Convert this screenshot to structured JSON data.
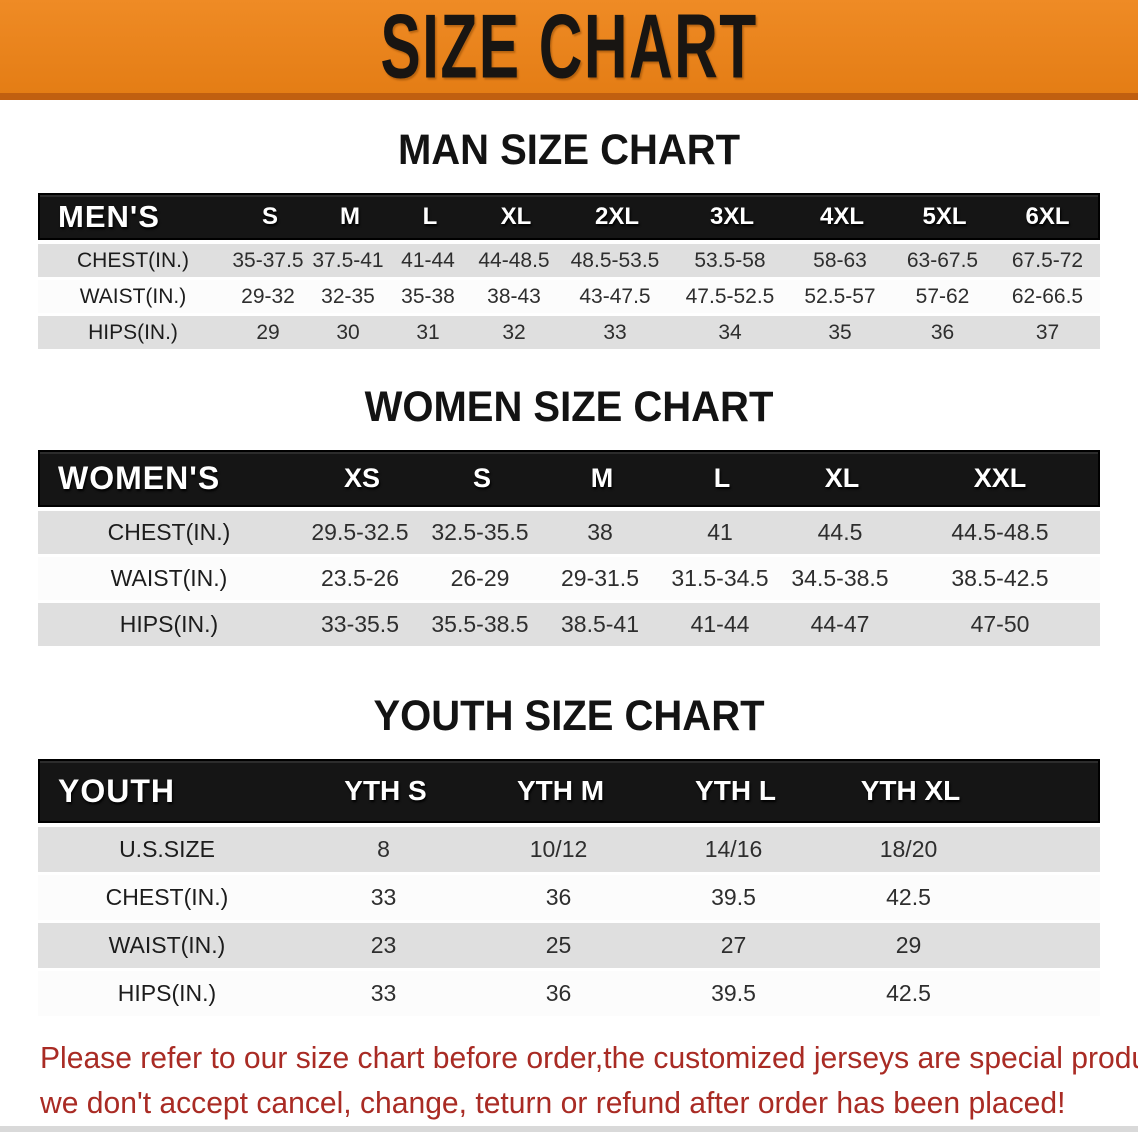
{
  "banner": {
    "title": "SIZE CHART"
  },
  "colors": {
    "banner_orange": "#e8821c",
    "banner_border": "#c05f10",
    "header_black": "#151515",
    "row_gray": "#dfdfdf",
    "row_white": "#fcfcfc",
    "disclaimer_red": "#a92b24"
  },
  "men": {
    "heading": "MAN SIZE CHART",
    "table": {
      "header": [
        "MEN'S",
        "S",
        "M",
        "L",
        "XL",
        "2XL",
        "3XL",
        "4XL",
        "5XL",
        "6XL"
      ],
      "rows": [
        [
          "CHEST(IN.)",
          "35-37.5",
          "37.5-41",
          "41-44",
          "44-48.5",
          "48.5-53.5",
          "53.5-58",
          "58-63",
          "63-67.5",
          "67.5-72"
        ],
        [
          "WAIST(IN.)",
          "29-32",
          "32-35",
          "35-38",
          "38-43",
          "43-47.5",
          "47.5-52.5",
          "52.5-57",
          "57-62",
          "62-66.5"
        ],
        [
          "HIPS(IN.)",
          "29",
          "30",
          "31",
          "32",
          "33",
          "34",
          "35",
          "36",
          "37"
        ]
      ]
    }
  },
  "women": {
    "heading": "WOMEN SIZE CHART",
    "table": {
      "header": [
        "WOMEN'S",
        "XS",
        "S",
        "M",
        "L",
        "XL",
        "XXL"
      ],
      "rows": [
        [
          "CHEST(IN.)",
          "29.5-32.5",
          "32.5-35.5",
          "38",
          "41",
          "44.5",
          "44.5-48.5"
        ],
        [
          "WAIST(IN.)",
          "23.5-26",
          "26-29",
          "29-31.5",
          "31.5-34.5",
          "34.5-38.5",
          "38.5-42.5"
        ],
        [
          "HIPS(IN.)",
          "33-35.5",
          "35.5-38.5",
          "38.5-41",
          "41-44",
          "44-47",
          "47-50"
        ]
      ]
    }
  },
  "youth": {
    "heading": "YOUTH SIZE CHART",
    "table": {
      "header": [
        "YOUTH",
        "YTH S",
        "YTH M",
        "YTH L",
        "YTH XL"
      ],
      "rows": [
        [
          "U.S.SIZE",
          "8",
          "10/12",
          "14/16",
          "18/20"
        ],
        [
          "CHEST(IN.)",
          "33",
          "36",
          "39.5",
          "42.5"
        ],
        [
          "WAIST(IN.)",
          "23",
          "25",
          "27",
          "29"
        ],
        [
          "HIPS(IN.)",
          "33",
          "36",
          "39.5",
          "42.5"
        ]
      ]
    }
  },
  "disclaimer": {
    "line1": "Please refer to our size chart before order,the customized jerseys are special products,",
    "line2": "we don't accept cancel, change, teturn or refund after order has been placed!"
  }
}
